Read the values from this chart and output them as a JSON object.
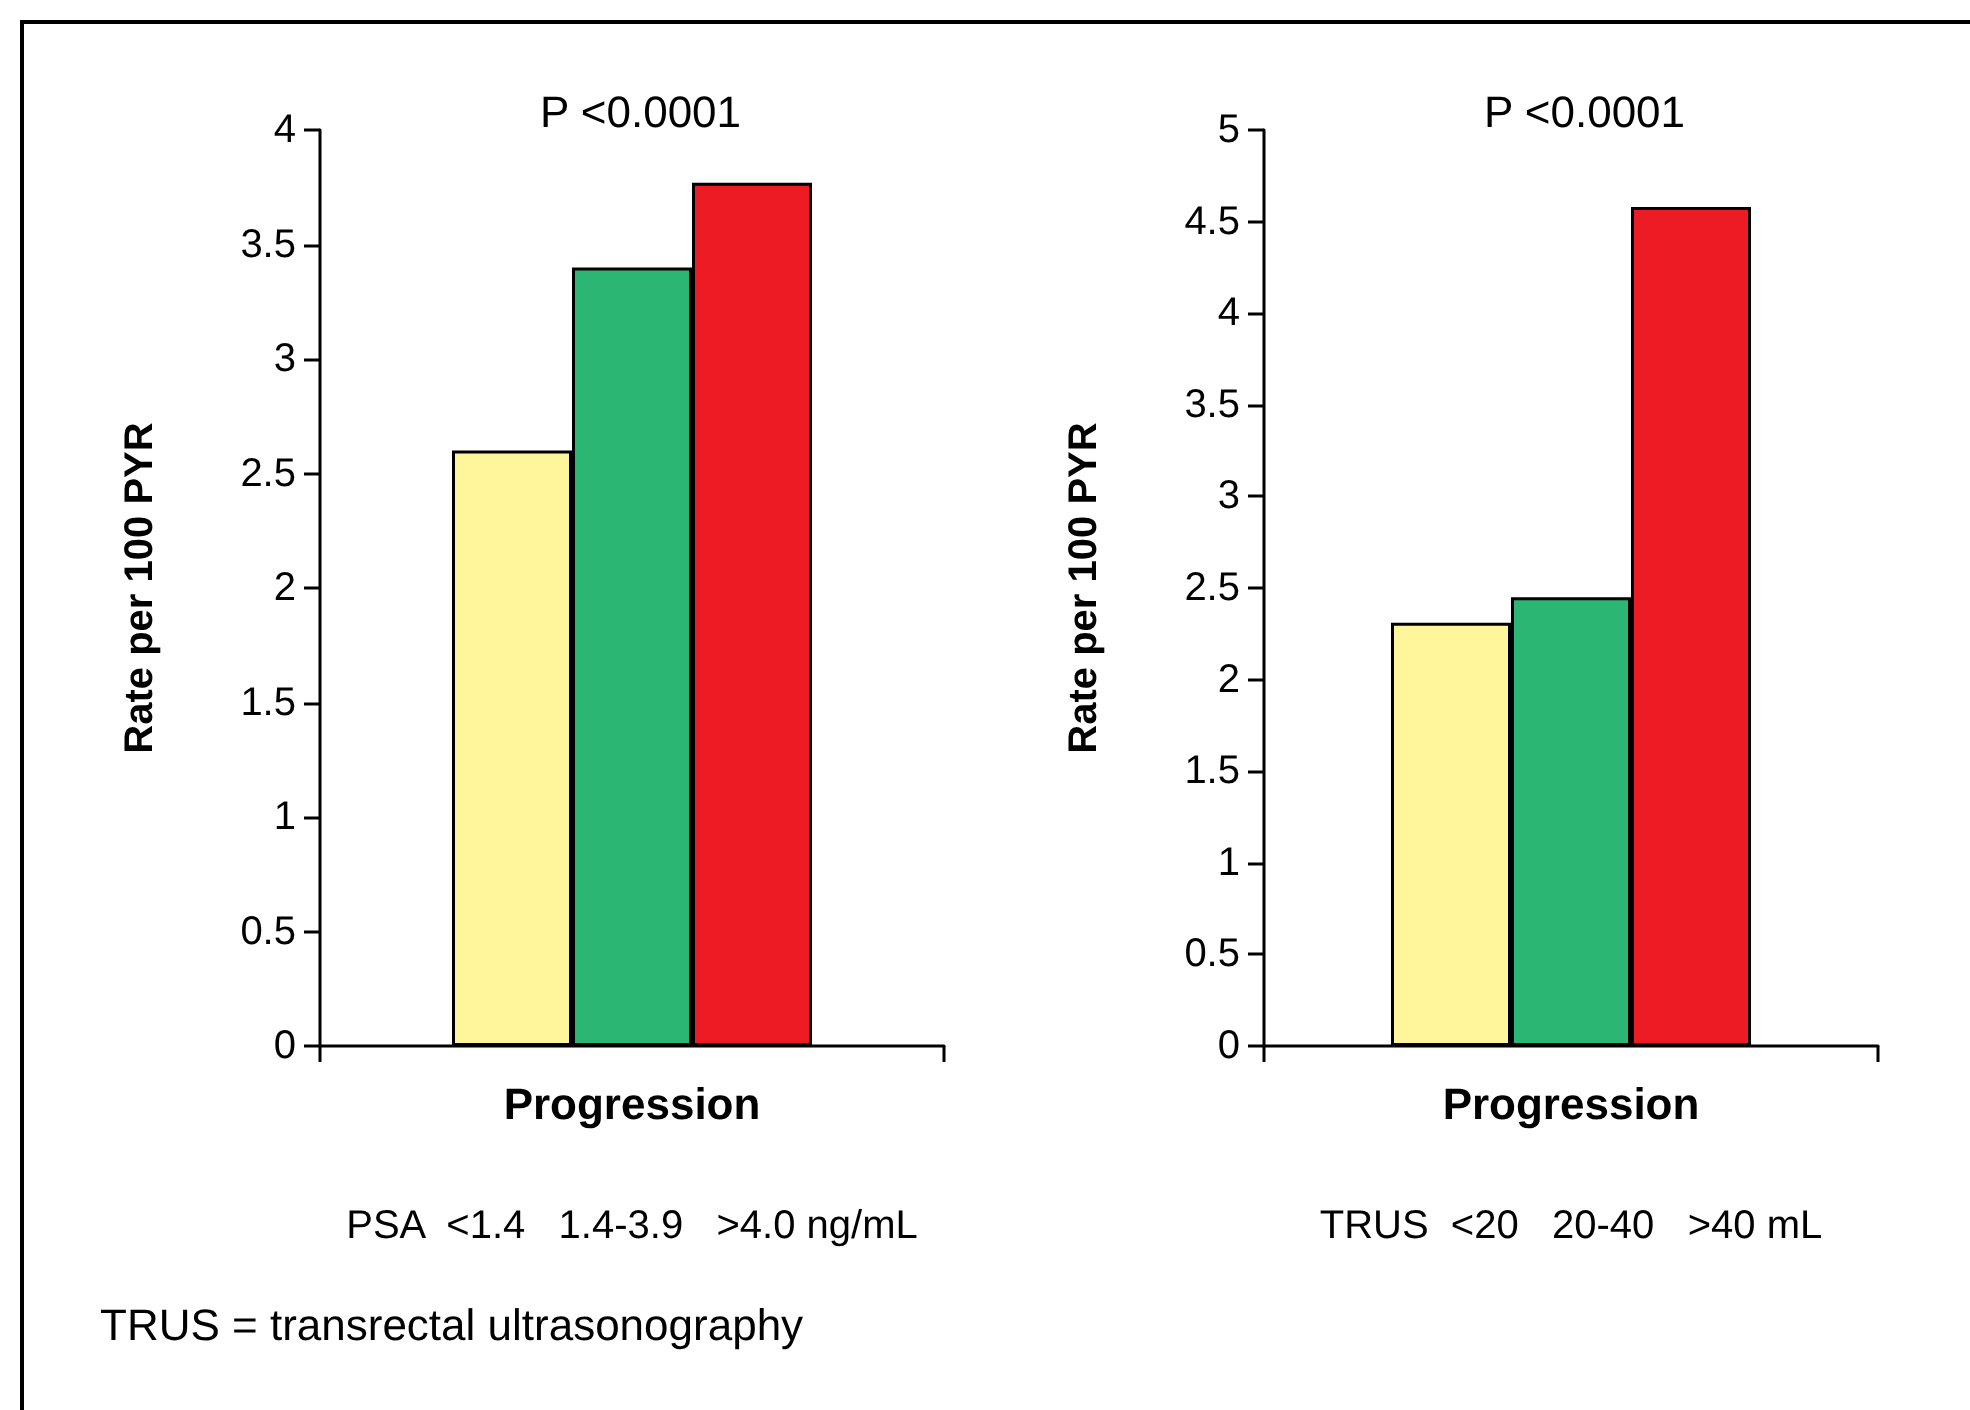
{
  "chart_data": [
    {
      "type": "bar",
      "categories": [
        "Progression"
      ],
      "xlabel": "PSA  <1.4   1.4-3.9   >4.0 ng/mL",
      "ylabel": "Rate per 100 PYR",
      "series": [
        {
          "color": "#fff59a",
          "values": [
            2.6
          ]
        },
        {
          "color": "#2bb673",
          "values": [
            3.4
          ]
        },
        {
          "color": "#ed1c24",
          "values": [
            3.77
          ]
        }
      ],
      "ylim": [
        0,
        4
      ],
      "yticks": [
        0,
        0.5,
        1,
        1.5,
        2,
        2.5,
        3,
        3.5,
        4
      ],
      "grid": false,
      "annotations": [
        "P <0.0001"
      ]
    },
    {
      "type": "bar",
      "categories": [
        "Progression"
      ],
      "xlabel": "TRUS  <20   20-40   >40 mL",
      "ylabel": "Rate per 100 PYR",
      "series": [
        {
          "color": "#fff59a",
          "values": [
            2.31
          ]
        },
        {
          "color": "#2bb673",
          "values": [
            2.45
          ]
        },
        {
          "color": "#ed1c24",
          "values": [
            4.58
          ]
        }
      ],
      "ylim": [
        0,
        5
      ],
      "yticks": [
        0,
        0.5,
        1,
        1.5,
        2,
        2.5,
        3,
        3.5,
        4,
        4.5,
        5
      ],
      "grid": false,
      "annotations": [
        "P <0.0001",
        "TRUS = transrectal ultrasonography"
      ]
    }
  ]
}
